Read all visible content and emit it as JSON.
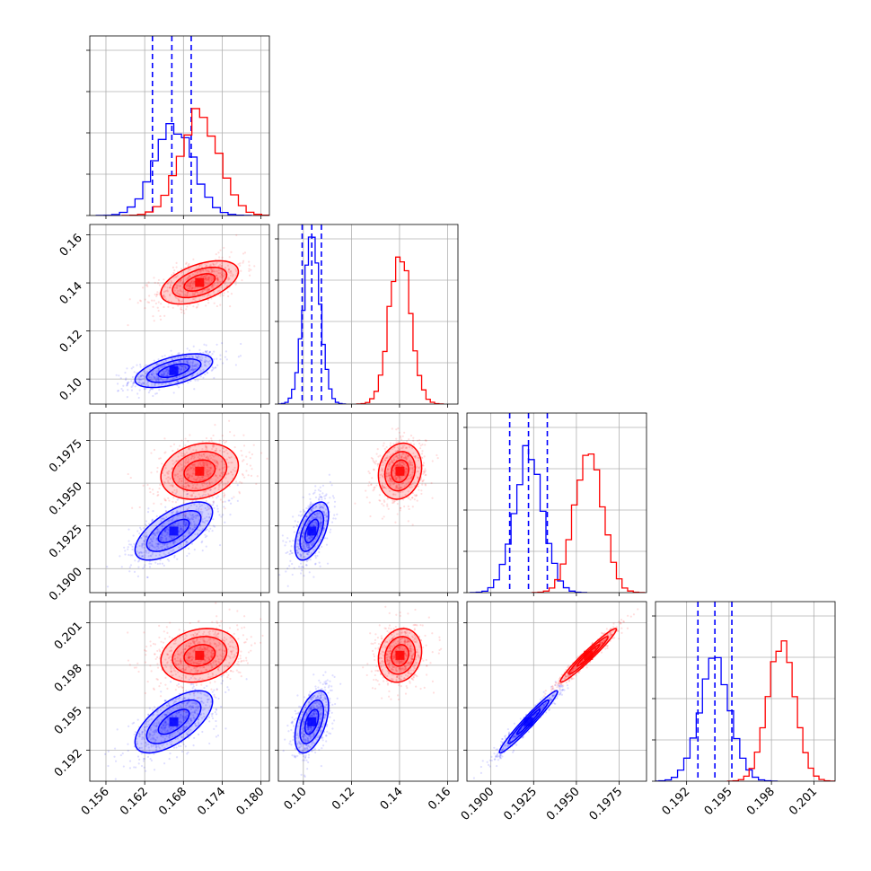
{
  "chart_data": {
    "type": "scatter",
    "subtype": "corner-plot",
    "title": "",
    "params": [
      {
        "ticks": [
          "0.156",
          "0.162",
          "0.168",
          "0.174",
          "0.180"
        ],
        "tick_values": [
          0.156,
          0.162,
          0.168,
          0.174,
          0.18
        ],
        "range": [
          0.1535,
          0.1813
        ]
      },
      {
        "ticks": [
          "0.10",
          "0.12",
          "0.14",
          "0.16"
        ],
        "tick_values": [
          0.1,
          0.12,
          0.14,
          0.16
        ],
        "range": [
          0.0896,
          0.1643
        ]
      },
      {
        "ticks": [
          "0.1900",
          "0.1925",
          "0.1950",
          "0.1975"
        ],
        "tick_values": [
          0.19,
          0.1925,
          0.195,
          0.1975
        ],
        "range": [
          0.1886,
          0.1991
        ]
      },
      {
        "ticks": [
          "0.192",
          "0.195",
          "0.198",
          "0.201"
        ],
        "tick_values": [
          0.192,
          0.195,
          0.198,
          0.201
        ],
        "range": [
          0.1898,
          0.2025
        ]
      }
    ],
    "series": [
      {
        "color": "#0000ff",
        "means": [
          0.1665,
          0.1035,
          0.1922,
          0.194
        ],
        "sds": [
          0.003,
          0.0035,
          0.00085,
          0.0011
        ],
        "quantiles": [
          [
            0.1632,
            0.1662,
            0.1692
          ],
          [
            0.0995,
            0.1035,
            0.1075
          ],
          [
            0.1911,
            0.1922,
            0.1933
          ],
          [
            0.1928,
            0.194,
            0.1952
          ]
        ],
        "hist_peak": [
          0.55,
          1.0,
          0.88,
          0.74
        ]
      },
      {
        "color": "#ff0000",
        "means": [
          0.1705,
          0.1402,
          0.1957,
          0.1987
        ],
        "sds": [
          0.003,
          0.0045,
          0.00082,
          0.00095
        ],
        "hist_peak": [
          0.64,
          0.88,
          0.83,
          0.84
        ]
      }
    ],
    "correlations": {
      "0-1": [
        0.55,
        0.5
      ],
      "0-2": [
        0.65,
        0.2
      ],
      "1-2": [
        0.55,
        0.15
      ],
      "0-3": [
        0.65,
        0.2
      ],
      "1-3": [
        0.5,
        0.15
      ],
      "2-3": [
        0.97,
        0.97
      ]
    },
    "contour_levels": 3,
    "grid": true,
    "legend": "none"
  }
}
